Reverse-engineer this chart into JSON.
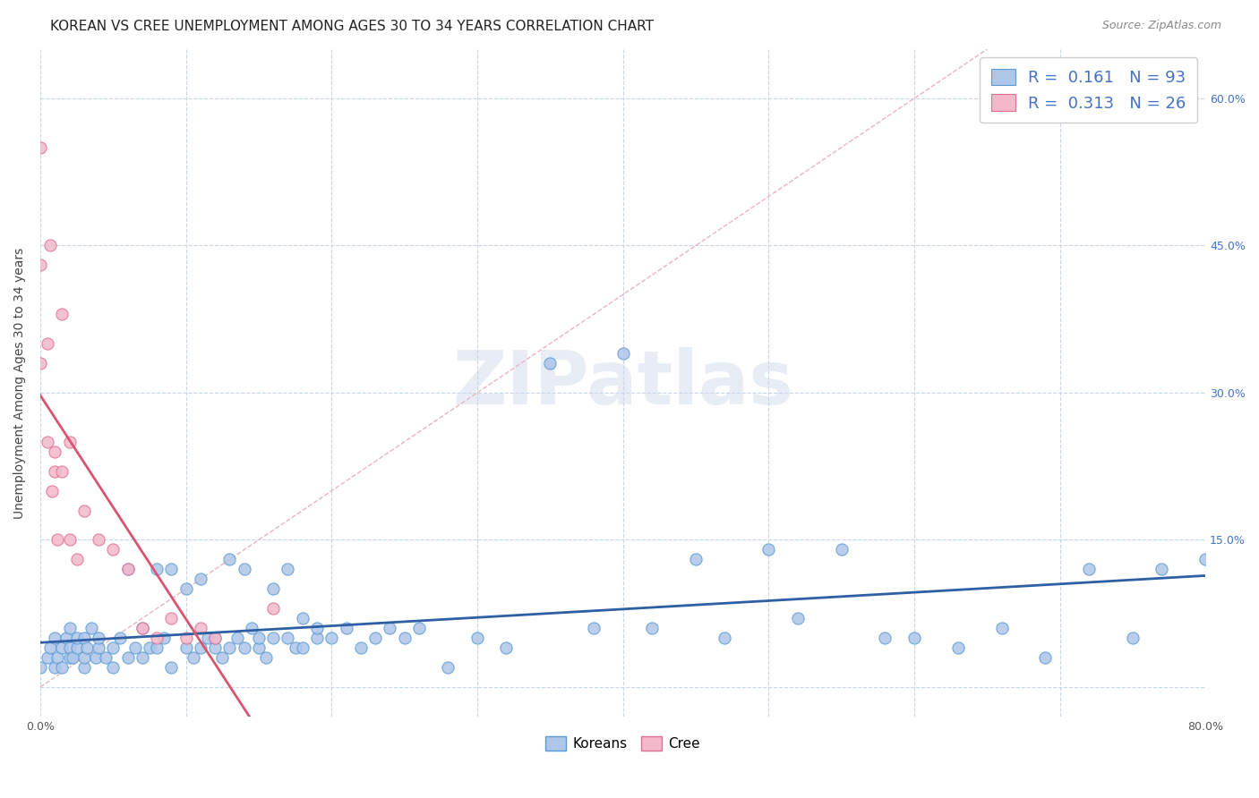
{
  "title": "KOREAN VS CREE UNEMPLOYMENT AMONG AGES 30 TO 34 YEARS CORRELATION CHART",
  "source": "Source: ZipAtlas.com",
  "ylabel": "Unemployment Among Ages 30 to 34 years",
  "xlim": [
    0.0,
    0.8
  ],
  "ylim": [
    -0.03,
    0.65
  ],
  "yticks": [
    0.0,
    0.15,
    0.3,
    0.45,
    0.6
  ],
  "xticks": [
    0.0,
    0.1,
    0.2,
    0.3,
    0.4,
    0.5,
    0.6,
    0.7,
    0.8
  ],
  "xtick_labels": [
    "0.0%",
    "",
    "",
    "",
    "",
    "",
    "",
    "",
    "80.0%"
  ],
  "korean_color": "#aec6e8",
  "cree_color": "#f4b8cb",
  "korean_edge": "#5b9bd5",
  "cree_edge": "#e07090",
  "korean_line_color": "#2e5fa3",
  "cree_line_color": "#d9546e",
  "diag_color": "#e8b4c0",
  "R_korean": 0.161,
  "N_korean": 93,
  "R_cree": 0.313,
  "N_cree": 26,
  "watermark": "ZIPatlas",
  "background_color": "#ffffff",
  "grid_color": "#c8d4e8",
  "right_ytick_labels": [
    "",
    "15.0%",
    "30.0%",
    "45.0%",
    "60.0%"
  ],
  "right_yticks": [
    0.0,
    0.15,
    0.3,
    0.45,
    0.6
  ],
  "korean_x": [
    0.0,
    0.005,
    0.007,
    0.01,
    0.01,
    0.012,
    0.015,
    0.015,
    0.018,
    0.02,
    0.02,
    0.02,
    0.022,
    0.025,
    0.025,
    0.03,
    0.03,
    0.03,
    0.032,
    0.035,
    0.038,
    0.04,
    0.04,
    0.045,
    0.05,
    0.05,
    0.055,
    0.06,
    0.06,
    0.065,
    0.07,
    0.07,
    0.075,
    0.08,
    0.08,
    0.085,
    0.09,
    0.09,
    0.1,
    0.1,
    0.105,
    0.11,
    0.11,
    0.115,
    0.12,
    0.12,
    0.125,
    0.13,
    0.13,
    0.135,
    0.14,
    0.14,
    0.145,
    0.15,
    0.15,
    0.155,
    0.16,
    0.16,
    0.17,
    0.17,
    0.175,
    0.18,
    0.18,
    0.19,
    0.19,
    0.2,
    0.21,
    0.22,
    0.23,
    0.24,
    0.25,
    0.26,
    0.28,
    0.3,
    0.32,
    0.35,
    0.38,
    0.4,
    0.42,
    0.45,
    0.47,
    0.5,
    0.52,
    0.55,
    0.58,
    0.6,
    0.63,
    0.66,
    0.69,
    0.72,
    0.75,
    0.77,
    0.8
  ],
  "korean_y": [
    0.02,
    0.03,
    0.04,
    0.02,
    0.05,
    0.03,
    0.04,
    0.02,
    0.05,
    0.03,
    0.04,
    0.06,
    0.03,
    0.04,
    0.05,
    0.02,
    0.03,
    0.05,
    0.04,
    0.06,
    0.03,
    0.04,
    0.05,
    0.03,
    0.02,
    0.04,
    0.05,
    0.03,
    0.12,
    0.04,
    0.03,
    0.06,
    0.04,
    0.04,
    0.12,
    0.05,
    0.02,
    0.12,
    0.04,
    0.1,
    0.03,
    0.04,
    0.11,
    0.05,
    0.04,
    0.05,
    0.03,
    0.04,
    0.13,
    0.05,
    0.04,
    0.12,
    0.06,
    0.04,
    0.05,
    0.03,
    0.05,
    0.1,
    0.05,
    0.12,
    0.04,
    0.04,
    0.07,
    0.05,
    0.06,
    0.05,
    0.06,
    0.04,
    0.05,
    0.06,
    0.05,
    0.06,
    0.02,
    0.05,
    0.04,
    0.33,
    0.06,
    0.34,
    0.06,
    0.13,
    0.05,
    0.14,
    0.07,
    0.14,
    0.05,
    0.05,
    0.04,
    0.06,
    0.03,
    0.12,
    0.05,
    0.12,
    0.13
  ],
  "cree_x": [
    0.0,
    0.0,
    0.0,
    0.005,
    0.005,
    0.007,
    0.008,
    0.01,
    0.01,
    0.012,
    0.015,
    0.015,
    0.02,
    0.02,
    0.025,
    0.03,
    0.04,
    0.05,
    0.06,
    0.07,
    0.08,
    0.09,
    0.1,
    0.11,
    0.12,
    0.16
  ],
  "cree_y": [
    0.55,
    0.43,
    0.33,
    0.35,
    0.25,
    0.45,
    0.2,
    0.24,
    0.22,
    0.15,
    0.22,
    0.38,
    0.25,
    0.15,
    0.13,
    0.18,
    0.15,
    0.14,
    0.12,
    0.06,
    0.05,
    0.07,
    0.05,
    0.06,
    0.05,
    0.08
  ]
}
